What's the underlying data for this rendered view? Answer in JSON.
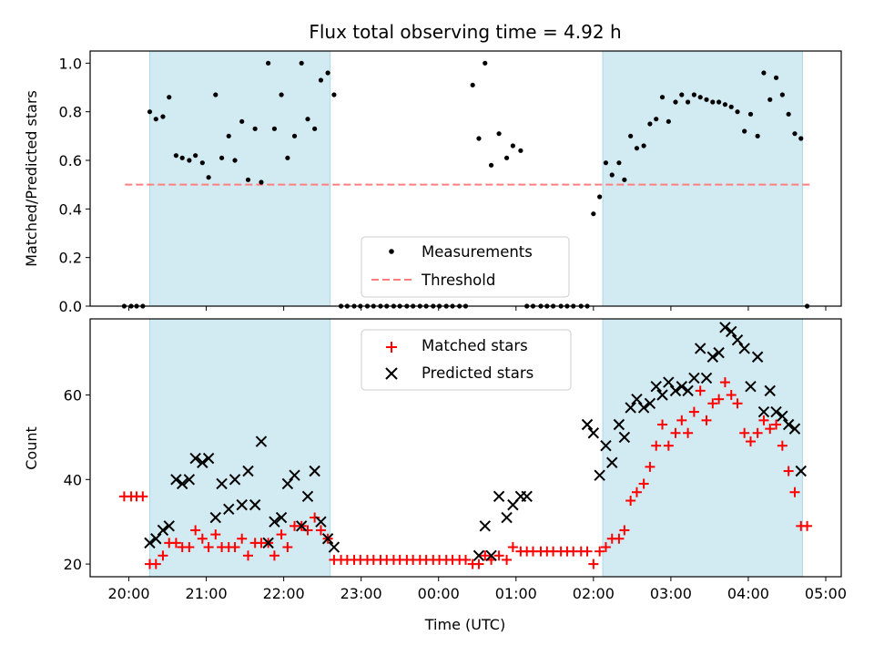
{
  "chart_data": [
    {
      "type": "scatter",
      "title": "Flux total observing time = 4.92 h",
      "xlabel": "",
      "ylabel": "Matched/Predicted stars",
      "ylim": [
        0,
        1.05
      ],
      "yticks": [
        "0.0",
        "0.2",
        "0.4",
        "0.6",
        "0.8",
        "1.0"
      ],
      "ytick_values": [
        0,
        0.2,
        0.4,
        0.6,
        0.8,
        1.0
      ],
      "xlim": [
        -0.5,
        9.2
      ],
      "xtick_values": [
        0,
        1,
        2,
        3,
        4,
        5,
        6,
        7,
        8,
        9
      ],
      "xticks": [
        "20:00",
        "21:00",
        "22:00",
        "23:00",
        "00:00",
        "01:00",
        "02:00",
        "03:00",
        "04:00",
        "05:00"
      ],
      "shaded_intervals": [
        [
          0.27,
          2.6
        ],
        [
          6.12,
          8.7
        ]
      ],
      "legend": "lower-center",
      "colors": {
        "measurements": "#000000",
        "threshold": "#ff7f7f",
        "shade": "#add8e6"
      },
      "series": [
        {
          "name": "Measurements",
          "x": [
            -0.06,
            0.03,
            0.1,
            0.18,
            0.27,
            0.35,
            0.44,
            0.52,
            0.61,
            0.69,
            0.78,
            0.86,
            0.95,
            1.03,
            1.12,
            1.2,
            1.29,
            1.37,
            1.46,
            1.54,
            1.63,
            1.71,
            1.8,
            1.88,
            1.97,
            2.05,
            2.14,
            2.23,
            2.31,
            2.4,
            2.48,
            2.57,
            2.65,
            2.74,
            2.82,
            2.91,
            2.99,
            3.08,
            3.16,
            3.25,
            3.33,
            3.42,
            3.5,
            3.59,
            3.67,
            3.76,
            3.84,
            3.93,
            4.01,
            4.1,
            4.18,
            4.27,
            4.35,
            4.44,
            4.52,
            4.6,
            4.68,
            4.78,
            4.88,
            4.96,
            5.06,
            5.14,
            5.22,
            5.32,
            5.4,
            5.48,
            5.58,
            5.66,
            5.74,
            5.84,
            5.92,
            6.0,
            6.08,
            6.16,
            6.24,
            6.33,
            6.4,
            6.48,
            6.56,
            6.65,
            6.73,
            6.81,
            6.89,
            6.97,
            7.06,
            7.14,
            7.22,
            7.3,
            7.38,
            7.46,
            7.54,
            7.62,
            7.7,
            7.78,
            7.86,
            7.95,
            8.03,
            8.12,
            8.2,
            8.28,
            8.36,
            8.44,
            8.52,
            8.6,
            8.68,
            8.76
          ],
          "y": [
            0,
            0,
            0,
            0,
            0.8,
            0.77,
            0.78,
            0.86,
            0.62,
            0.61,
            0.6,
            0.62,
            0.59,
            0.53,
            0.87,
            0.61,
            0.7,
            0.6,
            0.76,
            0.52,
            0.73,
            0.51,
            1.0,
            0.73,
            0.87,
            0.61,
            0.7,
            1.0,
            0.77,
            0.73,
            0.93,
            0.96,
            0.87,
            0,
            0,
            0,
            0,
            0,
            0,
            0,
            0,
            0,
            0,
            0,
            0,
            0,
            0,
            0,
            0,
            0,
            0,
            0,
            0,
            0.91,
            0.69,
            1.0,
            0.58,
            0.71,
            0.61,
            0.66,
            0.64,
            0,
            0,
            0,
            0,
            0,
            0,
            0,
            0,
            0,
            0,
            0.38,
            0.45,
            0.59,
            0.54,
            0.59,
            0.52,
            0.7,
            0.65,
            0.66,
            0.75,
            0.77,
            0.86,
            0.76,
            0.84,
            0.87,
            0.84,
            0.87,
            0.86,
            0.85,
            0.84,
            0.84,
            0.83,
            0.82,
            0.8,
            0.72,
            0.79,
            0.7,
            0.96,
            0.85,
            0.94,
            0.87,
            0.79,
            0.71,
            0.69,
            0
          ],
          "marker": "dot"
        },
        {
          "name": "Threshold",
          "x": [
            -0.05,
            8.8
          ],
          "y": [
            0.5,
            0.5
          ],
          "marker": "dashed-line"
        }
      ]
    },
    {
      "type": "scatter",
      "title": "",
      "xlabel": "Time (UTC)",
      "ylabel": "Count",
      "ylim": [
        17,
        78
      ],
      "yticks": [
        "20",
        "40",
        "60"
      ],
      "ytick_values": [
        20,
        40,
        60
      ],
      "xlim": [
        -0.5,
        9.2
      ],
      "xtick_values": [
        0,
        1,
        2,
        3,
        4,
        5,
        6,
        7,
        8,
        9
      ],
      "xticks": [
        "20:00",
        "21:00",
        "22:00",
        "23:00",
        "00:00",
        "01:00",
        "02:00",
        "03:00",
        "04:00",
        "05:00"
      ],
      "shaded_intervals": [
        [
          0.27,
          2.6
        ],
        [
          6.12,
          8.7
        ]
      ],
      "legend": "upper-center",
      "colors": {
        "matched": "#ff0000",
        "predicted": "#000000",
        "shade": "#add8e6"
      },
      "series": [
        {
          "name": "Matched stars",
          "marker": "plus",
          "x": [
            -0.06,
            0.03,
            0.1,
            0.18,
            0.27,
            0.35,
            0.44,
            0.52,
            0.61,
            0.69,
            0.78,
            0.86,
            0.95,
            1.03,
            1.12,
            1.2,
            1.29,
            1.37,
            1.46,
            1.54,
            1.63,
            1.71,
            1.8,
            1.88,
            1.97,
            2.05,
            2.14,
            2.23,
            2.31,
            2.4,
            2.48,
            2.57,
            2.65,
            2.74,
            2.82,
            2.91,
            2.99,
            3.08,
            3.16,
            3.25,
            3.33,
            3.42,
            3.5,
            3.59,
            3.67,
            3.76,
            3.84,
            3.93,
            4.01,
            4.1,
            4.18,
            4.27,
            4.35,
            4.44,
            4.52,
            4.6,
            4.68,
            4.78,
            4.88,
            4.96,
            5.06,
            5.14,
            5.22,
            5.32,
            5.4,
            5.48,
            5.58,
            5.66,
            5.74,
            5.84,
            5.92,
            6.0,
            6.08,
            6.16,
            6.24,
            6.33,
            6.4,
            6.48,
            6.56,
            6.65,
            6.73,
            6.81,
            6.89,
            6.97,
            7.06,
            7.14,
            7.22,
            7.3,
            7.38,
            7.46,
            7.54,
            7.62,
            7.7,
            7.78,
            7.86,
            7.95,
            8.03,
            8.12,
            8.2,
            8.28,
            8.36,
            8.44,
            8.52,
            8.6,
            8.68,
            8.76
          ],
          "y": [
            36,
            36,
            36,
            36,
            20,
            20,
            22,
            25,
            25,
            24,
            24,
            28,
            26,
            24,
            27,
            24,
            24,
            24,
            26,
            22,
            25,
            25,
            25,
            22,
            27,
            24,
            29,
            29,
            28,
            31,
            28,
            26,
            21,
            21,
            21,
            21,
            21,
            21,
            21,
            21,
            21,
            21,
            21,
            21,
            21,
            21,
            21,
            21,
            21,
            21,
            21,
            21,
            21,
            20,
            20,
            22,
            21,
            22,
            21,
            24,
            23,
            23,
            23,
            23,
            23,
            23,
            23,
            23,
            23,
            23,
            23,
            20,
            23,
            24,
            26,
            26,
            28,
            35,
            37,
            39,
            43,
            48,
            53,
            48,
            51,
            54,
            51,
            56,
            61,
            54,
            58,
            59,
            63,
            60,
            58,
            51,
            49,
            51,
            54,
            52,
            53,
            48,
            42,
            37,
            29,
            29
          ]
        },
        {
          "name": "Predicted stars",
          "marker": "x",
          "x": [
            0.27,
            0.35,
            0.44,
            0.52,
            0.61,
            0.69,
            0.78,
            0.86,
            0.95,
            1.03,
            1.12,
            1.2,
            1.29,
            1.37,
            1.46,
            1.54,
            1.63,
            1.71,
            1.8,
            1.88,
            1.97,
            2.05,
            2.14,
            2.23,
            2.31,
            2.4,
            2.48,
            2.57,
            2.65,
            4.52,
            4.6,
            4.68,
            4.78,
            4.88,
            4.96,
            5.06,
            5.14,
            5.92,
            6.0,
            6.08,
            6.16,
            6.24,
            6.33,
            6.4,
            6.48,
            6.56,
            6.65,
            6.73,
            6.81,
            6.89,
            6.97,
            7.06,
            7.14,
            7.22,
            7.3,
            7.38,
            7.46,
            7.54,
            7.62,
            7.7,
            7.78,
            7.86,
            7.95,
            8.03,
            8.12,
            8.2,
            8.28,
            8.36,
            8.44,
            8.52,
            8.6,
            8.68
          ],
          "y": [
            25,
            26,
            28,
            29,
            40,
            39,
            40,
            45,
            44,
            45,
            31,
            39,
            33,
            40,
            34,
            42,
            34,
            49,
            25,
            30,
            31,
            39,
            41,
            29,
            36,
            42,
            30,
            26,
            24,
            22,
            29,
            22,
            36,
            31,
            34,
            36,
            36,
            53,
            51,
            41,
            48,
            44,
            53,
            50,
            57,
            59,
            57,
            58,
            62,
            60,
            63,
            61,
            62,
            61,
            64,
            71,
            64,
            69,
            70,
            76,
            75,
            73,
            71,
            62,
            69,
            56,
            61,
            56,
            55,
            53,
            52,
            42
          ]
        }
      ]
    }
  ]
}
